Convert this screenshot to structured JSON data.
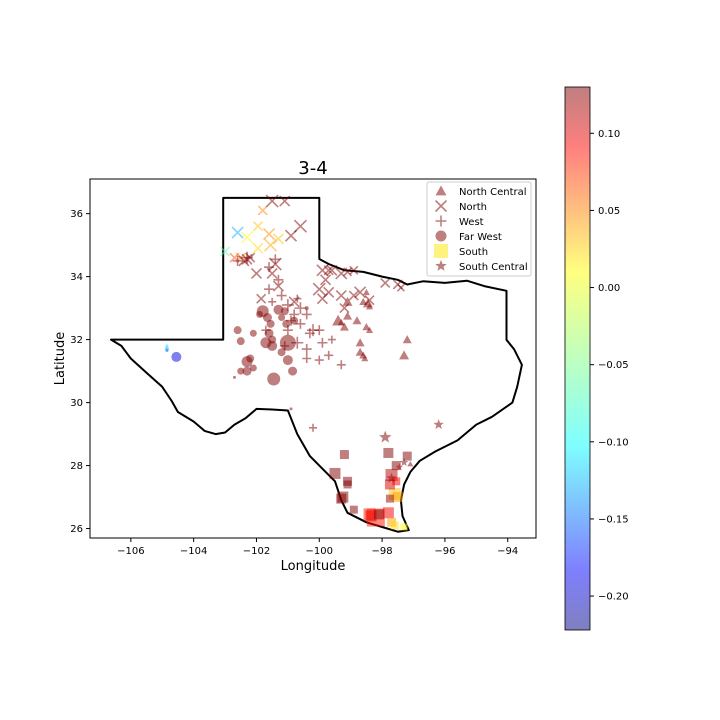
{
  "chart_data": {
    "type": "scatter",
    "title": "3-4",
    "xlabel": "Longitude",
    "ylabel": "Latitude",
    "xlim": [
      -107.3,
      -93.1
    ],
    "ylim": [
      25.7,
      37.1
    ],
    "xticks": [
      -106,
      -104,
      -102,
      -100,
      -98,
      -96,
      -94
    ],
    "xtick_labels": [
      "−106",
      "−104",
      "−102",
      "−100",
      "−98",
      "−96",
      "−94"
    ],
    "yticks": [
      26,
      28,
      30,
      32,
      34,
      36
    ],
    "ytick_labels": [
      "26",
      "28",
      "30",
      "32",
      "34",
      "36"
    ],
    "grid": false,
    "legend_position": "top-right",
    "colormap": "jet",
    "marker_alpha": 0.5,
    "colorbar": {
      "min": -0.222,
      "max": 0.13,
      "ticks": [
        0.1,
        0.05,
        0.0,
        -0.05,
        -0.1,
        -0.15,
        -0.2
      ],
      "tick_labels": [
        "0.10",
        "0.05",
        "0.00",
        "−0.05",
        "−0.10",
        "−0.15",
        "−0.20"
      ]
    },
    "outline": [
      [
        -103.06,
        36.5
      ],
      [
        -100.0,
        36.5
      ],
      [
        -100.0,
        34.56
      ],
      [
        -99.7,
        34.4
      ],
      [
        -99.2,
        34.2
      ],
      [
        -98.6,
        34.15
      ],
      [
        -98.0,
        34.0
      ],
      [
        -97.5,
        33.9
      ],
      [
        -97.2,
        33.75
      ],
      [
        -96.7,
        33.85
      ],
      [
        -96.0,
        33.8
      ],
      [
        -95.3,
        33.87
      ],
      [
        -94.75,
        33.7
      ],
      [
        -94.04,
        33.55
      ],
      [
        -94.04,
        31.99
      ],
      [
        -93.8,
        31.7
      ],
      [
        -93.55,
        31.2
      ],
      [
        -93.7,
        30.5
      ],
      [
        -93.85,
        30.0
      ],
      [
        -94.5,
        29.55
      ],
      [
        -95.0,
        29.3
      ],
      [
        -95.6,
        28.8
      ],
      [
        -96.3,
        28.45
      ],
      [
        -96.8,
        28.15
      ],
      [
        -97.1,
        27.8
      ],
      [
        -97.3,
        27.4
      ],
      [
        -97.4,
        26.9
      ],
      [
        -97.35,
        26.4
      ],
      [
        -97.15,
        25.95
      ],
      [
        -97.5,
        25.9
      ],
      [
        -98.0,
        26.05
      ],
      [
        -98.5,
        26.2
      ],
      [
        -99.1,
        26.5
      ],
      [
        -99.3,
        26.9
      ],
      [
        -99.5,
        27.5
      ],
      [
        -99.9,
        27.9
      ],
      [
        -100.3,
        28.3
      ],
      [
        -100.7,
        29.0
      ],
      [
        -101.0,
        29.75
      ],
      [
        -101.5,
        29.78
      ],
      [
        -102.0,
        29.8
      ],
      [
        -102.35,
        29.5
      ],
      [
        -102.7,
        29.3
      ],
      [
        -103.0,
        29.05
      ],
      [
        -103.3,
        29.0
      ],
      [
        -103.65,
        29.1
      ],
      [
        -104.0,
        29.4
      ],
      [
        -104.5,
        29.7
      ],
      [
        -104.7,
        30.05
      ],
      [
        -105.0,
        30.5
      ],
      [
        -105.5,
        30.95
      ],
      [
        -106.0,
        31.4
      ],
      [
        -106.3,
        31.8
      ],
      [
        -106.63,
        32.0
      ],
      [
        -103.06,
        32.0
      ],
      [
        -103.06,
        36.5
      ]
    ],
    "series": [
      {
        "name": "North Central",
        "marker": "triangle",
        "points": [
          [
            -99.1,
            33.2,
            0.13,
            10
          ],
          [
            -99.1,
            32.75,
            0.13,
            9
          ],
          [
            -99.4,
            32.6,
            0.13,
            12
          ],
          [
            -99.2,
            32.4,
            0.13,
            9
          ],
          [
            -98.8,
            32.6,
            0.13,
            9
          ],
          [
            -98.5,
            32.4,
            0.13,
            8
          ],
          [
            -98.6,
            33.2,
            0.13,
            8
          ],
          [
            -98.45,
            33.15,
            0.13,
            10
          ],
          [
            -98.4,
            33.05,
            0.13,
            7
          ],
          [
            -98.5,
            33.5,
            0.13,
            7
          ],
          [
            -98.7,
            31.9,
            0.13,
            9
          ],
          [
            -98.7,
            31.6,
            0.13,
            9
          ],
          [
            -98.6,
            31.5,
            0.13,
            8
          ],
          [
            -98.55,
            31.4,
            0.13,
            7
          ],
          [
            -98.4,
            32.3,
            0.13,
            7
          ],
          [
            -97.2,
            32.0,
            0.13,
            9
          ],
          [
            -97.3,
            31.5,
            0.13,
            10
          ],
          [
            -97.1,
            28.05,
            0.13,
            6
          ],
          [
            -99.3,
            32.55,
            0.13,
            7
          ]
        ]
      },
      {
        "name": "North",
        "marker": "x",
        "points": [
          [
            -101.5,
            36.4,
            0.13,
            12
          ],
          [
            -101.1,
            36.4,
            0.13,
            10
          ],
          [
            -100.6,
            35.6,
            0.13,
            12
          ],
          [
            -100.9,
            35.3,
            0.13,
            11
          ],
          [
            -101.3,
            35.2,
            0.02,
            10
          ],
          [
            -101.6,
            35.35,
            0.04,
            11
          ],
          [
            -101.55,
            35.0,
            0.03,
            12
          ],
          [
            -101.95,
            35.6,
            0.02,
            9
          ],
          [
            -101.8,
            36.1,
            0.04,
            9
          ],
          [
            -101.4,
            34.4,
            0.13,
            12
          ],
          [
            -101.5,
            34.1,
            0.13,
            10
          ],
          [
            -101.3,
            33.7,
            0.13,
            10
          ],
          [
            -101.85,
            33.3,
            0.13,
            9
          ],
          [
            -102.0,
            34.1,
            0.13,
            10
          ],
          [
            -102.2,
            34.6,
            0.13,
            9
          ],
          [
            -102.5,
            34.6,
            0.04,
            9
          ],
          [
            -102.6,
            35.4,
            -0.12,
            11
          ],
          [
            -102.3,
            35.25,
            0.0,
            11
          ],
          [
            -103.0,
            34.8,
            -0.06,
            9
          ],
          [
            -102.7,
            34.6,
            0.06,
            9
          ],
          [
            -102.4,
            34.5,
            0.13,
            10
          ],
          [
            -102.3,
            34.55,
            0.13,
            10
          ],
          [
            -101.95,
            34.9,
            0.01,
            10
          ],
          [
            -100.8,
            33.2,
            0.13,
            10
          ],
          [
            -99.9,
            34.2,
            0.13,
            11
          ],
          [
            -99.6,
            34.2,
            0.13,
            10
          ],
          [
            -99.3,
            34.1,
            0.13,
            11
          ],
          [
            -99.8,
            33.9,
            0.13,
            10
          ],
          [
            -99.7,
            33.5,
            0.13,
            10
          ],
          [
            -99.9,
            33.3,
            0.13,
            10
          ],
          [
            -100.0,
            33.6,
            0.13,
            12
          ],
          [
            -99.3,
            33.4,
            0.13,
            10
          ],
          [
            -98.9,
            33.4,
            0.13,
            9
          ],
          [
            -98.7,
            33.5,
            0.13,
            11
          ],
          [
            -98.4,
            33.25,
            0.13,
            9
          ],
          [
            -99.2,
            33.0,
            0.13,
            9
          ],
          [
            -97.9,
            33.8,
            0.13,
            9
          ],
          [
            -97.5,
            33.75,
            0.13,
            9
          ],
          [
            -97.4,
            33.65,
            0.13,
            7
          ],
          [
            -99.1,
            34.15,
            0.13,
            8
          ],
          [
            -98.9,
            34.2,
            0.13,
            8
          ],
          [
            -99.7,
            34.2,
            0.13,
            9
          ]
        ]
      },
      {
        "name": "West",
        "marker": "plus",
        "points": [
          [
            -102.6,
            34.5,
            0.13,
            10
          ],
          [
            -102.3,
            34.6,
            0.13,
            12
          ],
          [
            -101.6,
            34.3,
            0.13,
            10
          ],
          [
            -101.4,
            34.55,
            0.13,
            10
          ],
          [
            -101.3,
            33.9,
            0.13,
            10
          ],
          [
            -101.6,
            33.6,
            0.13,
            10
          ],
          [
            -101.2,
            33.4,
            0.13,
            10
          ],
          [
            -101.0,
            33.1,
            0.13,
            12
          ],
          [
            -100.6,
            33.0,
            0.13,
            12
          ],
          [
            -100.4,
            32.8,
            0.13,
            10
          ],
          [
            -100.2,
            32.3,
            0.13,
            12
          ],
          [
            -100.3,
            32.2,
            0.13,
            10
          ],
          [
            -100.6,
            32.5,
            0.13,
            10
          ],
          [
            -100.9,
            32.6,
            0.13,
            10
          ],
          [
            -101.0,
            32.3,
            0.13,
            10
          ],
          [
            -100.8,
            32.8,
            0.13,
            10
          ],
          [
            -100.7,
            31.9,
            0.13,
            12
          ],
          [
            -100.4,
            31.7,
            0.13,
            10
          ],
          [
            -100.0,
            32.3,
            0.13,
            10
          ],
          [
            -99.9,
            31.9,
            0.13,
            10
          ],
          [
            -99.7,
            31.5,
            0.13,
            9
          ],
          [
            -99.3,
            31.2,
            0.13,
            9
          ],
          [
            -100.4,
            31.4,
            0.13,
            9
          ],
          [
            -100.0,
            31.35,
            0.13,
            9
          ],
          [
            -101.1,
            31.8,
            0.13,
            9
          ],
          [
            -101.7,
            32.3,
            0.13,
            9
          ],
          [
            -100.2,
            29.2,
            0.13,
            8
          ],
          [
            -101.5,
            33.2,
            0.13,
            8
          ],
          [
            -100.7,
            33.3,
            0.13,
            8
          ],
          [
            -99.6,
            32.0,
            0.13,
            8
          ]
        ]
      },
      {
        "name": "Far West",
        "marker": "circle",
        "points": [
          [
            -102.6,
            32.3,
            0.13,
            8
          ],
          [
            -102.1,
            32.2,
            0.13,
            7
          ],
          [
            -102.2,
            31.4,
            0.13,
            8
          ],
          [
            -102.1,
            31.1,
            0.13,
            7
          ],
          [
            -102.3,
            31.3,
            0.13,
            11
          ],
          [
            -102.5,
            31.95,
            0.13,
            8
          ],
          [
            -102.3,
            31.0,
            0.13,
            9
          ],
          [
            -102.5,
            31.0,
            0.13,
            7
          ],
          [
            -101.8,
            32.9,
            0.13,
            12
          ],
          [
            -101.65,
            32.7,
            0.13,
            9
          ],
          [
            -101.55,
            32.5,
            0.13,
            8
          ],
          [
            -101.3,
            32.95,
            0.13,
            10
          ],
          [
            -101.1,
            32.9,
            0.13,
            8
          ],
          [
            -101.6,
            32.2,
            0.13,
            9
          ],
          [
            -101.7,
            31.9,
            0.13,
            11
          ],
          [
            -101.0,
            31.9,
            0.13,
            16
          ],
          [
            -101.5,
            31.8,
            0.13,
            10
          ],
          [
            -101.2,
            31.6,
            0.13,
            8
          ],
          [
            -101.0,
            31.35,
            0.13,
            10
          ],
          [
            -100.85,
            31.0,
            0.13,
            9
          ],
          [
            -101.45,
            30.75,
            0.13,
            13
          ],
          [
            -101.2,
            32.7,
            0.13,
            7
          ],
          [
            -101.05,
            32.5,
            0.13,
            8
          ],
          [
            -100.8,
            32.6,
            0.13,
            8
          ],
          [
            -101.5,
            32.0,
            0.13,
            8
          ],
          [
            -101.9,
            32.8,
            0.13,
            7
          ],
          [
            -104.55,
            31.45,
            -0.19,
            10
          ],
          [
            -104.85,
            31.7,
            -0.12,
            4
          ],
          [
            -104.85,
            31.8,
            -0.1,
            3
          ],
          [
            -104.85,
            31.65,
            -0.14,
            3
          ],
          [
            -102.7,
            30.8,
            0.13,
            3
          ],
          [
            -100.9,
            29.8,
            0.13,
            3
          ],
          [
            -100.4,
            33.0,
            0.13,
            4
          ]
        ]
      },
      {
        "name": "South",
        "marker": "square",
        "points": [
          [
            -99.2,
            28.35,
            0.13,
            9
          ],
          [
            -99.5,
            27.75,
            0.13,
            11
          ],
          [
            -99.1,
            27.5,
            0.13,
            9
          ],
          [
            -99.1,
            27.4,
            0.13,
            8
          ],
          [
            -99.25,
            27.0,
            0.13,
            11
          ],
          [
            -99.3,
            26.95,
            0.13,
            10
          ],
          [
            -98.9,
            26.6,
            0.13,
            8
          ],
          [
            -98.4,
            26.45,
            0.08,
            12
          ],
          [
            -98.35,
            26.4,
            0.1,
            11
          ],
          [
            -98.2,
            26.35,
            0.08,
            18
          ],
          [
            -98.1,
            26.45,
            0.13,
            10
          ],
          [
            -97.8,
            26.5,
            0.09,
            11
          ],
          [
            -97.7,
            26.2,
            0.03,
            9
          ],
          [
            -97.6,
            26.1,
            0.01,
            8
          ],
          [
            -97.3,
            26.05,
            0.0,
            7
          ],
          [
            -97.6,
            27.1,
            0.02,
            12
          ],
          [
            -97.5,
            27.0,
            0.03,
            10
          ],
          [
            -97.75,
            27.4,
            0.1,
            10
          ],
          [
            -97.7,
            27.7,
            0.11,
            12
          ],
          [
            -97.55,
            28.0,
            0.13,
            9
          ],
          [
            -97.8,
            28.4,
            0.13,
            10
          ],
          [
            -97.2,
            28.3,
            0.13,
            9
          ],
          [
            -97.75,
            26.95,
            0.12,
            8
          ],
          [
            -97.55,
            27.5,
            0.09,
            8
          ]
        ]
      },
      {
        "name": "South Central",
        "marker": "star",
        "points": [
          [
            -97.9,
            28.9,
            0.13,
            12
          ],
          [
            -96.2,
            29.3,
            0.13,
            10
          ],
          [
            -97.7,
            27.6,
            0.12,
            10
          ],
          [
            -97.3,
            28.1,
            0.13,
            8
          ],
          [
            -97.45,
            27.95,
            0.11,
            7
          ]
        ]
      }
    ]
  }
}
